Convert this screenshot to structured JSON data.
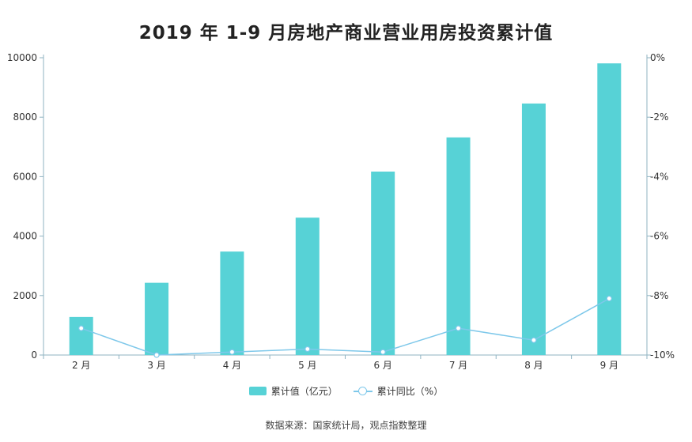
{
  "chart_data": {
    "type": "bar",
    "title": "2019 年 1-9 月房地产商业营业用房投资累计值",
    "categories": [
      "2 月",
      "3 月",
      "4 月",
      "5 月",
      "6 月",
      "7 月",
      "8 月",
      "9 月"
    ],
    "series": [
      {
        "name": "累计值（亿元）",
        "type": "bar",
        "axis": "left",
        "values": [
          1280,
          2430,
          3480,
          4620,
          6170,
          7320,
          8460,
          9810
        ]
      },
      {
        "name": "累计同比（%）",
        "type": "line",
        "axis": "right",
        "values": [
          -9.1,
          -10.0,
          -9.9,
          -9.8,
          -9.9,
          -9.1,
          -9.5,
          -8.1
        ]
      }
    ],
    "y_left": {
      "min": 0,
      "max": 10000,
      "ticks": [
        0,
        2000,
        4000,
        6000,
        8000,
        10000
      ]
    },
    "y_right": {
      "min": -10,
      "max": 0,
      "ticks": [
        -10,
        -8,
        -6,
        -4,
        -2,
        0
      ],
      "tick_labels": [
        "-10%",
        "-8%",
        "-6%",
        "-4%",
        "-2%",
        "0%"
      ]
    },
    "legend_position": "bottom",
    "grid": false,
    "colors": {
      "bar": "#57d2d6",
      "line": "#7ec8ea",
      "axis": "#8fb3c2"
    }
  },
  "source_text": "数据来源：国家统计局，观点指数整理"
}
